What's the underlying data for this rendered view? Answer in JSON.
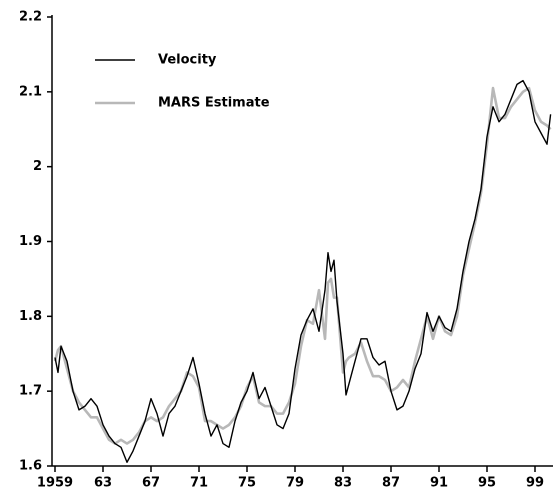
{
  "chart_data": {
    "type": "line",
    "x": [
      1959,
      1959.25,
      1959.5,
      1960,
      1960.5,
      1961,
      1961.5,
      1962,
      1962.5,
      1963,
      1963.5,
      1964,
      1964.5,
      1965,
      1965.5,
      1966,
      1966.5,
      1967,
      1967.5,
      1968,
      1968.5,
      1969,
      1969.5,
      1970,
      1970.5,
      1971,
      1971.5,
      1972,
      1972.5,
      1973,
      1973.5,
      1974,
      1974.5,
      1975,
      1975.5,
      1976,
      1976.5,
      1977,
      1977.5,
      1978,
      1978.5,
      1979,
      1979.5,
      1980,
      1980.5,
      1981,
      1981.5,
      1981.75,
      1982,
      1982.25,
      1982.5,
      1983,
      1983.25,
      1983.5,
      1984,
      1984.5,
      1985,
      1985.5,
      1986,
      1986.5,
      1987,
      1987.5,
      1988,
      1988.5,
      1989,
      1989.5,
      1990,
      1990.5,
      1991,
      1991.5,
      1992,
      1992.5,
      1993,
      1993.5,
      1994,
      1994.5,
      1995,
      1995.5,
      1996,
      1996.5,
      1997,
      1997.5,
      1998,
      1998.5,
      1999,
      1999.5,
      2000,
      2000.3
    ],
    "series": [
      {
        "name": "Velocity",
        "color": "#000000",
        "values": [
          1.745,
          1.725,
          1.76,
          1.74,
          1.7,
          1.675,
          1.68,
          1.69,
          1.68,
          1.655,
          1.64,
          1.63,
          1.625,
          1.605,
          1.62,
          1.64,
          1.66,
          1.69,
          1.67,
          1.64,
          1.67,
          1.68,
          1.7,
          1.72,
          1.745,
          1.71,
          1.67,
          1.64,
          1.655,
          1.63,
          1.625,
          1.66,
          1.685,
          1.7,
          1.725,
          1.69,
          1.705,
          1.68,
          1.655,
          1.65,
          1.67,
          1.73,
          1.775,
          1.795,
          1.81,
          1.78,
          1.835,
          1.885,
          1.86,
          1.875,
          1.82,
          1.75,
          1.695,
          1.71,
          1.74,
          1.77,
          1.77,
          1.745,
          1.735,
          1.74,
          1.7,
          1.675,
          1.68,
          1.7,
          1.73,
          1.75,
          1.805,
          1.78,
          1.8,
          1.785,
          1.78,
          1.81,
          1.86,
          1.9,
          1.93,
          1.97,
          2.04,
          2.08,
          2.06,
          2.07,
          2.09,
          2.11,
          2.115,
          2.1,
          2.06,
          2.045,
          2.03,
          2.07
        ]
      },
      {
        "name": "MARS Estimate",
        "color": "#b8b8b8",
        "values": [
          1.74,
          1.755,
          1.76,
          1.73,
          1.7,
          1.685,
          1.675,
          1.665,
          1.665,
          1.65,
          1.635,
          1.63,
          1.635,
          1.63,
          1.635,
          1.645,
          1.66,
          1.665,
          1.66,
          1.665,
          1.68,
          1.69,
          1.7,
          1.725,
          1.72,
          1.705,
          1.66,
          1.66,
          1.655,
          1.65,
          1.655,
          1.665,
          1.68,
          1.705,
          1.72,
          1.685,
          1.68,
          1.68,
          1.67,
          1.67,
          1.685,
          1.71,
          1.76,
          1.795,
          1.79,
          1.835,
          1.77,
          1.845,
          1.85,
          1.825,
          1.825,
          1.725,
          1.74,
          1.745,
          1.75,
          1.765,
          1.74,
          1.72,
          1.72,
          1.715,
          1.7,
          1.705,
          1.715,
          1.705,
          1.74,
          1.77,
          1.8,
          1.77,
          1.8,
          1.78,
          1.775,
          1.8,
          1.855,
          1.89,
          1.925,
          1.965,
          2.03,
          2.105,
          2.065,
          2.065,
          2.08,
          2.09,
          2.1,
          2.105,
          2.075,
          2.06,
          2.055,
          2.05
        ]
      }
    ],
    "xlim": [
      1958.75,
      2000.5
    ],
    "xticks": [
      1959,
      {
        "value": 1963,
        "label": "63"
      },
      {
        "value": 1967,
        "label": "67"
      },
      {
        "value": 1971,
        "label": "71"
      },
      {
        "value": 1975,
        "label": "75"
      },
      {
        "value": 1979,
        "label": "79"
      },
      {
        "value": 1983,
        "label": "83"
      },
      {
        "value": 1987,
        "label": "87"
      },
      {
        "value": 1991,
        "label": "91"
      },
      {
        "value": 1995,
        "label": "95"
      },
      {
        "value": 1999,
        "label": "99"
      }
    ],
    "ylim": [
      1.6,
      2.2
    ],
    "yticks": [
      1.6,
      1.7,
      1.8,
      1.9,
      2.0,
      2.1,
      2.2
    ],
    "legend": "upper left"
  }
}
